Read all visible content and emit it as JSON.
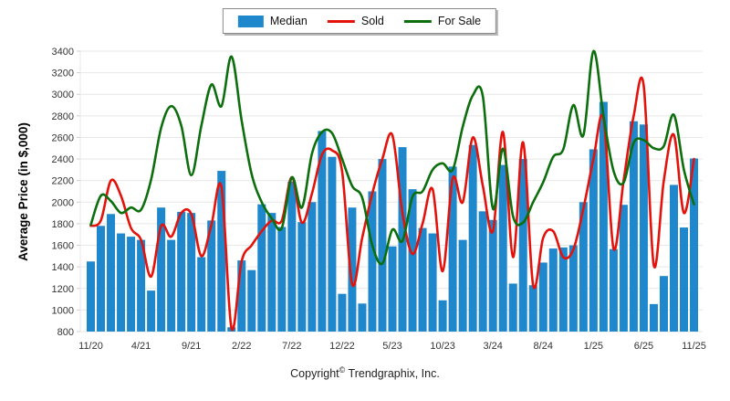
{
  "legend": {
    "items": [
      {
        "label": "Median",
        "marker": "rect",
        "color": "#1f87cb"
      },
      {
        "label": "Sold",
        "marker": "line",
        "color": "#e3120b"
      },
      {
        "label": "For Sale",
        "marker": "line",
        "color": "#0c6e0c"
      }
    ]
  },
  "footer": {
    "copyright_prefix": "Copyright",
    "copyright_symbol": "©",
    "copyright_suffix": " Trendgraphix, Inc."
  },
  "chart_data": {
    "type": "bar",
    "title": "",
    "xlabel": "",
    "ylabel": "Average Price (in $,000)",
    "ylim": [
      800,
      3400
    ],
    "ytick_step": 200,
    "grid": "horizontal",
    "legend_position": "top-center",
    "x_tick_every": 5,
    "x_tick_labels": [
      "11/20",
      "4/21",
      "9/21",
      "2/22",
      "7/22",
      "12/22",
      "5/23",
      "10/23",
      "3/24",
      "8/24",
      "1/25",
      "6/25",
      "11/25"
    ],
    "x": [
      "11/20",
      "12/20",
      "1/21",
      "2/21",
      "3/21",
      "4/21",
      "5/21",
      "6/21",
      "7/21",
      "8/21",
      "9/21",
      "10/21",
      "11/21",
      "12/21",
      "1/22",
      "2/22",
      "3/22",
      "4/22",
      "5/22",
      "6/22",
      "7/22",
      "8/22",
      "9/22",
      "10/22",
      "11/22",
      "12/22",
      "1/23",
      "2/23",
      "3/23",
      "4/23",
      "5/23",
      "6/23",
      "7/23",
      "8/23",
      "9/23",
      "10/23",
      "11/23",
      "12/23",
      "1/24",
      "2/24",
      "3/24",
      "4/24",
      "5/24",
      "6/24",
      "7/24",
      "8/24",
      "9/24",
      "10/24",
      "11/24",
      "12/24",
      "1/25",
      "2/25",
      "3/25",
      "4/25",
      "5/25",
      "6/25",
      "7/25",
      "8/25",
      "9/25",
      "10/25",
      "11/25"
    ],
    "series": [
      {
        "name": "Median",
        "type": "bar",
        "color": "#1f87cb",
        "values": [
          1450,
          1780,
          1890,
          1710,
          1680,
          1650,
          1180,
          1950,
          1650,
          1910,
          1900,
          1490,
          1830,
          2290,
          840,
          1460,
          1370,
          1980,
          1900,
          1770,
          2190,
          1815,
          2000,
          2660,
          2420,
          1150,
          1950,
          1060,
          2100,
          2400,
          1590,
          2510,
          2120,
          1760,
          1710,
          1090,
          2330,
          1650,
          2530,
          1915,
          1835,
          2345,
          1245,
          2400,
          1230,
          1440,
          1570,
          1580,
          1600,
          2000,
          2490,
          2930,
          1565,
          1975,
          2750,
          2720,
          1055,
          1315,
          2160,
          1765,
          2405
        ]
      },
      {
        "name": "Sold",
        "type": "line",
        "color": "#e3120b",
        "values": [
          1780,
          1830,
          2200,
          2060,
          1760,
          1650,
          1310,
          1780,
          1680,
          1900,
          1890,
          1500,
          1790,
          2140,
          830,
          1450,
          1600,
          1730,
          1830,
          1830,
          2230,
          1810,
          2080,
          2440,
          2480,
          2285,
          1240,
          1670,
          2080,
          2400,
          2620,
          1900,
          1520,
          1800,
          2120,
          1360,
          2220,
          2000,
          2600,
          2150,
          1730,
          2650,
          1490,
          2555,
          1230,
          1670,
          1730,
          1490,
          1560,
          1940,
          2400,
          2780,
          1570,
          2200,
          2800,
          3080,
          1415,
          2200,
          2625,
          1900,
          2400
        ]
      },
      {
        "name": "For Sale",
        "type": "line",
        "color": "#0c6e0c",
        "values": [
          1790,
          2060,
          2010,
          1900,
          1950,
          1930,
          2210,
          2690,
          2890,
          2710,
          2250,
          2710,
          3090,
          2890,
          3350,
          2760,
          2260,
          2000,
          1850,
          1760,
          2230,
          1950,
          2450,
          2650,
          2640,
          2400,
          2150,
          2040,
          1600,
          1430,
          1745,
          1640,
          2050,
          2100,
          2300,
          2360,
          2300,
          2700,
          2990,
          2980,
          1940,
          2495,
          1870,
          1810,
          2000,
          2185,
          2420,
          2490,
          2900,
          2620,
          3400,
          2800,
          2290,
          2180,
          2550,
          2575,
          2500,
          2520,
          2810,
          2300,
          1980
        ]
      }
    ]
  }
}
